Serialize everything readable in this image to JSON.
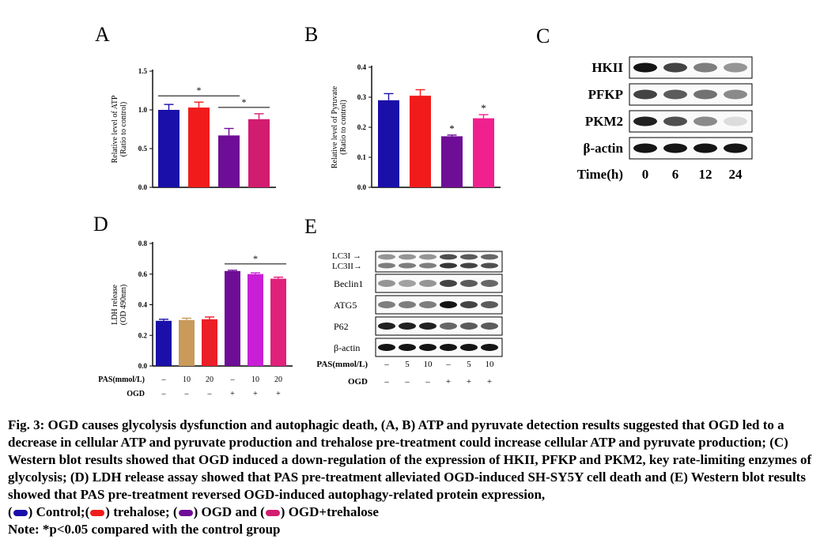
{
  "colors": {
    "control": "#1a0fa8",
    "trehalose": "#f21b1b",
    "ogd": "#6e0d96",
    "ogd_trehalose": "#d21c6f",
    "pas_10": "#c99a5a",
    "pas_20": "#ec1e27",
    "ogd_pas_10": "#c81fd6",
    "ogd_pas_20": "#e0207a"
  },
  "chart_data": [
    {
      "panel": "A",
      "type": "bar",
      "ylabel": [
        "Relative level of ATP",
        "(Ratio to control)"
      ],
      "ylim": [
        0,
        1.5
      ],
      "yticks": [
        "0.0",
        "0.5",
        "1.0",
        "1.5"
      ],
      "values": [
        1.0,
        1.03,
        0.67,
        0.88
      ],
      "errors": [
        0.07,
        0.07,
        0.09,
        0.07
      ],
      "colors": [
        "#1a0fa8",
        "#f21b1b",
        "#6e0d96",
        "#d21c6f"
      ],
      "significance": [
        {
          "from": 0,
          "to": 2,
          "label": "*"
        },
        {
          "from": 2,
          "to": 3,
          "label": "*"
        }
      ]
    },
    {
      "panel": "B",
      "type": "bar",
      "ylabel": [
        "Relative level of Pyruvate",
        "(Ratio to control)"
      ],
      "ylim": [
        0,
        0.4
      ],
      "yticks": [
        "0.0",
        "0.1",
        "0.2",
        "0.3",
        "0.4"
      ],
      "values": [
        0.29,
        0.305,
        0.17,
        0.23
      ],
      "errors": [
        0.022,
        0.02,
        0.004,
        0.012
      ],
      "colors": [
        "#1a0fa8",
        "#f21b1b",
        "#6e0d96",
        "#f0218e"
      ],
      "stars": [
        "",
        "",
        "*",
        "*"
      ]
    },
    {
      "panel": "D",
      "type": "bar",
      "ylabel": [
        "LDH release",
        "(OD 490nm)"
      ],
      "ylim": [
        0,
        0.8
      ],
      "yticks": [
        "0.0",
        "0.2",
        "0.4",
        "0.6",
        "0.8"
      ],
      "values": [
        0.295,
        0.3,
        0.305,
        0.62,
        0.6,
        0.57
      ],
      "errors": [
        0.01,
        0.012,
        0.015,
        0.005,
        0.008,
        0.01
      ],
      "colors": [
        "#1a0fa8",
        "#c99a5a",
        "#ec1e27",
        "#6e0d96",
        "#c81fd6",
        "#e0207a"
      ],
      "significance": [
        {
          "from": 3,
          "to": 5,
          "label": "*"
        }
      ],
      "row_labels": [
        "PAS(mmol/L)",
        "OGD"
      ],
      "pas_row": [
        "–",
        "10",
        "20",
        "–",
        "10",
        "20"
      ],
      "ogd_row": [
        "–",
        "–",
        "–",
        "+",
        "+",
        "+"
      ]
    }
  ],
  "panels": {
    "a": "A",
    "b": "B",
    "c": "C",
    "d": "D",
    "e": "E"
  },
  "blot_c": {
    "labels": [
      "HKII",
      "PFKP",
      "PKM2",
      "β-actin"
    ],
    "intensity": [
      [
        1.0,
        0.8,
        0.55,
        0.45
      ],
      [
        0.8,
        0.7,
        0.6,
        0.5
      ],
      [
        0.95,
        0.75,
        0.5,
        0.15
      ],
      [
        1.0,
        1.0,
        1.0,
        1.0
      ]
    ],
    "time_label": "Time(h)",
    "times": [
      "0",
      "6",
      "12",
      "24"
    ]
  },
  "blot_e": {
    "labels": [
      "LC3I",
      "LC3II",
      "Beclin1",
      "ATG5",
      "P62",
      "β-actin"
    ],
    "row_labels": [
      "PAS(mmol/L)",
      "OGD"
    ],
    "pas_row": [
      "–",
      "5",
      "10",
      "–",
      "5",
      "10"
    ],
    "ogd_row": [
      "–",
      "–",
      "–",
      "+",
      "+",
      "+"
    ],
    "intensity": [
      [
        0.45,
        0.45,
        0.45,
        0.75,
        0.7,
        0.65
      ],
      [
        0.55,
        0.55,
        0.55,
        0.85,
        0.8,
        0.75
      ],
      [
        0.45,
        0.4,
        0.45,
        0.8,
        0.7,
        0.65
      ],
      [
        0.55,
        0.55,
        0.55,
        1.0,
        0.8,
        0.7
      ],
      [
        0.95,
        0.95,
        0.95,
        0.65,
        0.7,
        0.7
      ],
      [
        1.0,
        1.0,
        1.0,
        1.0,
        1.0,
        1.0
      ]
    ]
  },
  "caption": {
    "main": "Fig. 3: OGD causes glycolysis dysfunction and autophagic death, (A, B) ATP and pyruvate detection results suggested that OGD led to a decrease in cellular ATP and pyruvate production and trehalose pre-treatment could increase cellular ATP and pyruvate production; (C) Western blot results showed that OGD induced a down-regulation of the expression of HKII, PFKP and PKM2, key rate-limiting enzymes of glycolysis; (D) LDH release assay showed that PAS pre-treatment alleviated OGD-induced SH-SY5Y cell death and (E) Western blot results showed that PAS pre-treatment reversed OGD-induced autophagy-related protein expression,",
    "legend": [
      {
        "label": ") Control;",
        "color": "#1a0fa8"
      },
      {
        "label": ") trehalose; ",
        "color": "#f21b1b"
      },
      {
        "label": ") OGD and ",
        "color": "#6e0d96"
      },
      {
        "label": ") OGD+trehalose",
        "color": "#d21c6f"
      }
    ],
    "note": "Note: *p<0.05 compared with the control group"
  }
}
